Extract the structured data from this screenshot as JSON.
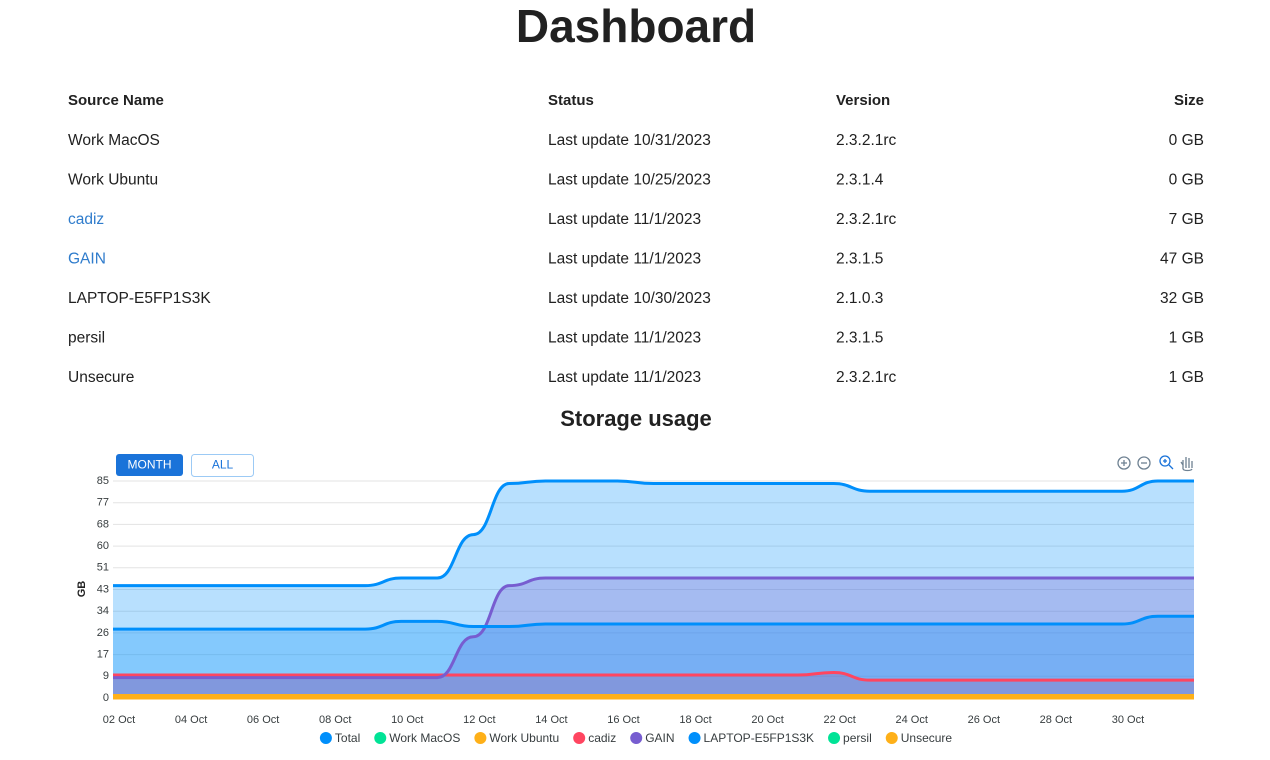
{
  "header": {
    "title": "Dashboard"
  },
  "table": {
    "columns": [
      "Source Name",
      "Status",
      "Version",
      "Size"
    ],
    "rows": [
      [
        "Work MacOS",
        "Last update 10/31/2023",
        "2.3.2.1rc",
        "0 GB"
      ],
      [
        "Work Ubuntu",
        "Last update 10/25/2023",
        "2.3.1.4",
        "0 GB"
      ],
      [
        "cadiz",
        "Last update 11/1/2023",
        "2.3.2.1rc",
        "7 GB"
      ],
      [
        "GAIN",
        "Last update 11/1/2023",
        "2.3.1.5",
        "47 GB"
      ],
      [
        "LAPTOP-E5FP1S3K",
        "Last update 10/30/2023",
        "2.1.0.3",
        "32 GB"
      ],
      [
        "persil",
        "Last update 11/1/2023",
        "2.3.1.5",
        "1 GB"
      ],
      [
        "Unsecure",
        "Last update 11/1/2023",
        "2.3.2.1rc",
        "1 GB"
      ]
    ]
  },
  "controls": {
    "range_buttons": [
      "MONTH",
      "ALL"
    ]
  },
  "chart_data": {
    "type": "area",
    "title": "Storage usage",
    "y_label": "GB",
    "categories": [
      "02 Oct",
      null,
      "04 Oct",
      null,
      "06 Oct",
      null,
      "08 Oct",
      null,
      "10 Oct",
      null,
      "12 Oct",
      null,
      "14 Oct",
      null,
      "16 Oct",
      null,
      "18 Oct",
      null,
      "20 Oct",
      null,
      "22 Oct",
      null,
      "24 Oct",
      null,
      "26 Oct",
      null,
      "28 Oct",
      null,
      "30 Oct",
      null,
      null
    ],
    "ylim": [
      0,
      85
    ],
    "yticks": [
      0,
      {
        "value": 8.5,
        "label": "9"
      },
      17,
      {
        "value": 25.5,
        "label": "26"
      },
      34,
      {
        "value": 42.5,
        "label": "43"
      },
      51,
      {
        "value": 59.5,
        "label": "60"
      },
      68,
      {
        "value": 76.5,
        "label": "77"
      },
      85
    ],
    "grid": true,
    "legend": "bottom",
    "series": [
      {
        "name": "Total",
        "color": "#008FFB",
        "values": [
          44,
          44,
          44,
          44,
          44,
          44,
          44,
          44,
          47,
          47,
          64,
          84,
          85,
          85,
          85,
          84,
          84,
          84,
          84,
          84,
          84,
          81,
          81,
          81,
          81,
          81,
          81,
          81,
          81,
          85,
          85
        ]
      },
      {
        "name": "Work MacOS",
        "color": "#00E396",
        "values": [
          0,
          0,
          0,
          0,
          0,
          0,
          0,
          0,
          0,
          0,
          0,
          0,
          0,
          0,
          0,
          0,
          0,
          0,
          0,
          0,
          0,
          0,
          0,
          0,
          0,
          0,
          0,
          0,
          0,
          0,
          0
        ]
      },
      {
        "name": "Work Ubuntu",
        "color": "#FEB019",
        "values": [
          0,
          0,
          0,
          0,
          0,
          0,
          0,
          0,
          0,
          0,
          0,
          0,
          0,
          0,
          0,
          0,
          0,
          0,
          0,
          0,
          0,
          0,
          0,
          0,
          0,
          0,
          0,
          0,
          0,
          0,
          0
        ]
      },
      {
        "name": "cadiz",
        "color": "#FF4560",
        "values": [
          9,
          9,
          9,
          9,
          9,
          9,
          9,
          9,
          9,
          9,
          9,
          9,
          9,
          9,
          9,
          9,
          9,
          9,
          9,
          9,
          10,
          7,
          7,
          7,
          7,
          7,
          7,
          7,
          7,
          7,
          7
        ]
      },
      {
        "name": "GAIN",
        "color": "#775DD0",
        "values": [
          8,
          8,
          8,
          8,
          8,
          8,
          8,
          8,
          8,
          8,
          24,
          44,
          47,
          47,
          47,
          47,
          47,
          47,
          47,
          47,
          47,
          47,
          47,
          47,
          47,
          47,
          47,
          47,
          47,
          47,
          47
        ]
      },
      {
        "name": "LAPTOP-E5FP1S3K",
        "color": "#008FFB",
        "values": [
          27,
          27,
          27,
          27,
          27,
          27,
          27,
          27,
          30,
          30,
          28,
          28,
          29,
          29,
          29,
          29,
          29,
          29,
          29,
          29,
          29,
          29,
          29,
          29,
          29,
          29,
          29,
          29,
          29,
          32,
          32
        ]
      },
      {
        "name": "persil",
        "color": "#00E396",
        "values": [
          1,
          1,
          1,
          1,
          1,
          1,
          1,
          1,
          1,
          1,
          1,
          1,
          1,
          1,
          1,
          1,
          1,
          1,
          1,
          1,
          1,
          1,
          1,
          1,
          1,
          1,
          1,
          1,
          1,
          1,
          1
        ]
      },
      {
        "name": "Unsecure",
        "color": "#FEB019",
        "values": [
          1,
          1,
          1,
          1,
          1,
          1,
          1,
          1,
          1,
          1,
          1,
          1,
          1,
          1,
          1,
          1,
          1,
          1,
          1,
          1,
          1,
          1,
          1,
          1,
          1,
          1,
          1,
          1,
          1,
          1,
          1
        ]
      }
    ]
  }
}
